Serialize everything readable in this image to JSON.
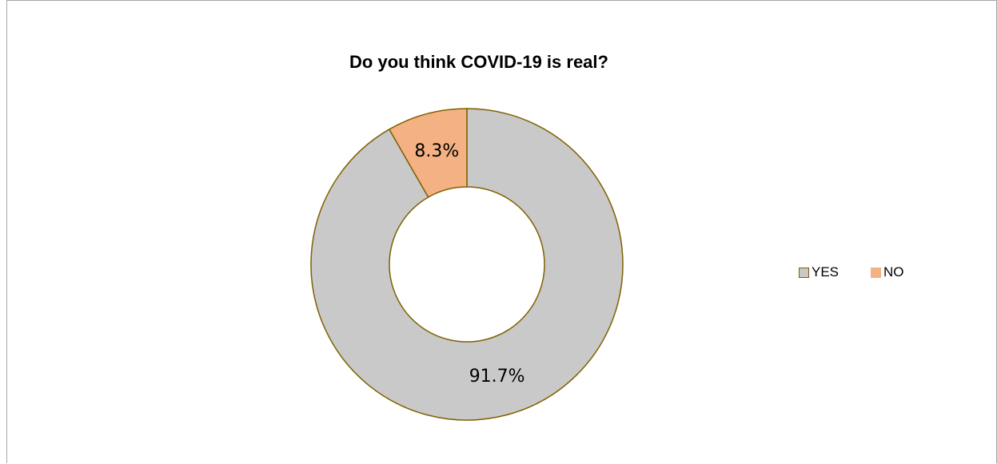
{
  "chart_data": {
    "type": "pie",
    "variant": "donut",
    "title": "Do you think COVID-19 is real?",
    "categories": [
      "YES",
      "NO"
    ],
    "values": [
      91.7,
      8.3
    ],
    "labels": [
      "91.7%",
      "8.3%"
    ],
    "colors": [
      "#c9c9c9",
      "#f4b183"
    ],
    "border_color": "#7f6000",
    "legend_position": "right"
  }
}
